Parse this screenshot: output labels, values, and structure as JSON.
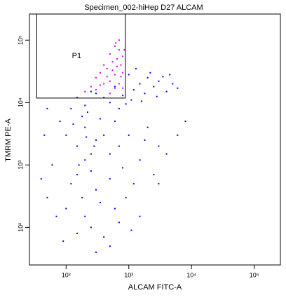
{
  "chart_data": {
    "type": "scatter",
    "title": "Specimen_002-hiHep D27 ALCAM",
    "x_label": "ALCAM FITC-A",
    "y_label": "TMRM PE-A",
    "log_x": true,
    "log_y": true,
    "xlim": [
      26,
      262144
    ],
    "ylim": [
      25,
      262144
    ],
    "xticks": [
      {
        "value": 100,
        "label": "10²"
      },
      {
        "value": 1000,
        "label": "10³"
      },
      {
        "value": 10000,
        "label": "10⁴"
      },
      {
        "value": 100000,
        "label": "10⁵"
      }
    ],
    "yticks": [
      {
        "value": 100,
        "label": "10²"
      },
      {
        "value": 1000,
        "label": "10³"
      },
      {
        "value": 10000,
        "label": "10⁴"
      },
      {
        "value": 100000,
        "label": "10⁵"
      }
    ],
    "gate": {
      "label": "P1",
      "x": [
        34,
        880
      ],
      "y": [
        11800,
        262000
      ]
    },
    "series": [
      {
        "color": "#0000ee",
        "x": [
          150,
          200,
          300,
          500,
          800,
          1200,
          1500,
          2000,
          2500,
          3000,
          4000,
          5000,
          1100,
          700,
          400,
          250,
          120,
          1800,
          2200,
          3500,
          1300,
          1000,
          600,
          900,
          1600,
          2800,
          6000,
          4500,
          80,
          100,
          150,
          200,
          250,
          300,
          200,
          150,
          250,
          400,
          500,
          600,
          700,
          1000,
          1500,
          2000,
          3000,
          120,
          180,
          300,
          500,
          800,
          1200,
          100,
          200,
          350,
          600,
          900,
          1500,
          250,
          150,
          400,
          700,
          1100,
          60,
          50,
          45,
          70,
          2500,
          4000,
          6000,
          8000,
          3000,
          180,
          220,
          130,
          350,
          280,
          160,
          210,
          90,
          500,
          300,
          1800,
          50,
          40
        ],
        "values": [
          12000,
          9000,
          14000,
          10000,
          13000,
          16000,
          20000,
          25000,
          18000,
          22000,
          15000,
          20000,
          11000,
          8000,
          12000,
          15000,
          8000,
          14000,
          30000,
          26000,
          35000,
          28000,
          18000,
          9500,
          10500,
          12500,
          17000,
          28000,
          5000,
          3000,
          2000,
          4000,
          1500,
          2500,
          1200,
          700,
          800,
          3000,
          1500,
          5000,
          2000,
          3000,
          1200,
          4000,
          2000,
          500,
          300,
          400,
          600,
          900,
          500,
          200,
          150,
          250,
          200,
          300,
          150,
          100,
          80,
          70,
          120,
          90,
          1000,
          300,
          3000,
          150,
          700,
          1500,
          3000,
          5000,
          500,
          6000,
          7000,
          4500,
          5500,
          2000,
          1000,
          2800,
          60,
          50,
          40,
          2500,
          8000,
          600
        ]
      },
      {
        "color": "#d400e8",
        "x": [
          600,
          500,
          700,
          400,
          550,
          650,
          300,
          350,
          450,
          750,
          800,
          250,
          200,
          500,
          600,
          700,
          800,
          850,
          400,
          300,
          550,
          650,
          450,
          750,
          350,
          600,
          500,
          800,
          700,
          620
        ],
        "values": [
          80000,
          60000,
          70000,
          40000,
          45000,
          50000,
          25000,
          30000,
          35000,
          40000,
          55000,
          18000,
          15000,
          22000,
          28000,
          20000,
          30000,
          70000,
          20000,
          16000,
          33000,
          38000,
          26000,
          26000,
          19000,
          17000,
          14000,
          17000,
          100000,
          90000
        ]
      }
    ]
  }
}
